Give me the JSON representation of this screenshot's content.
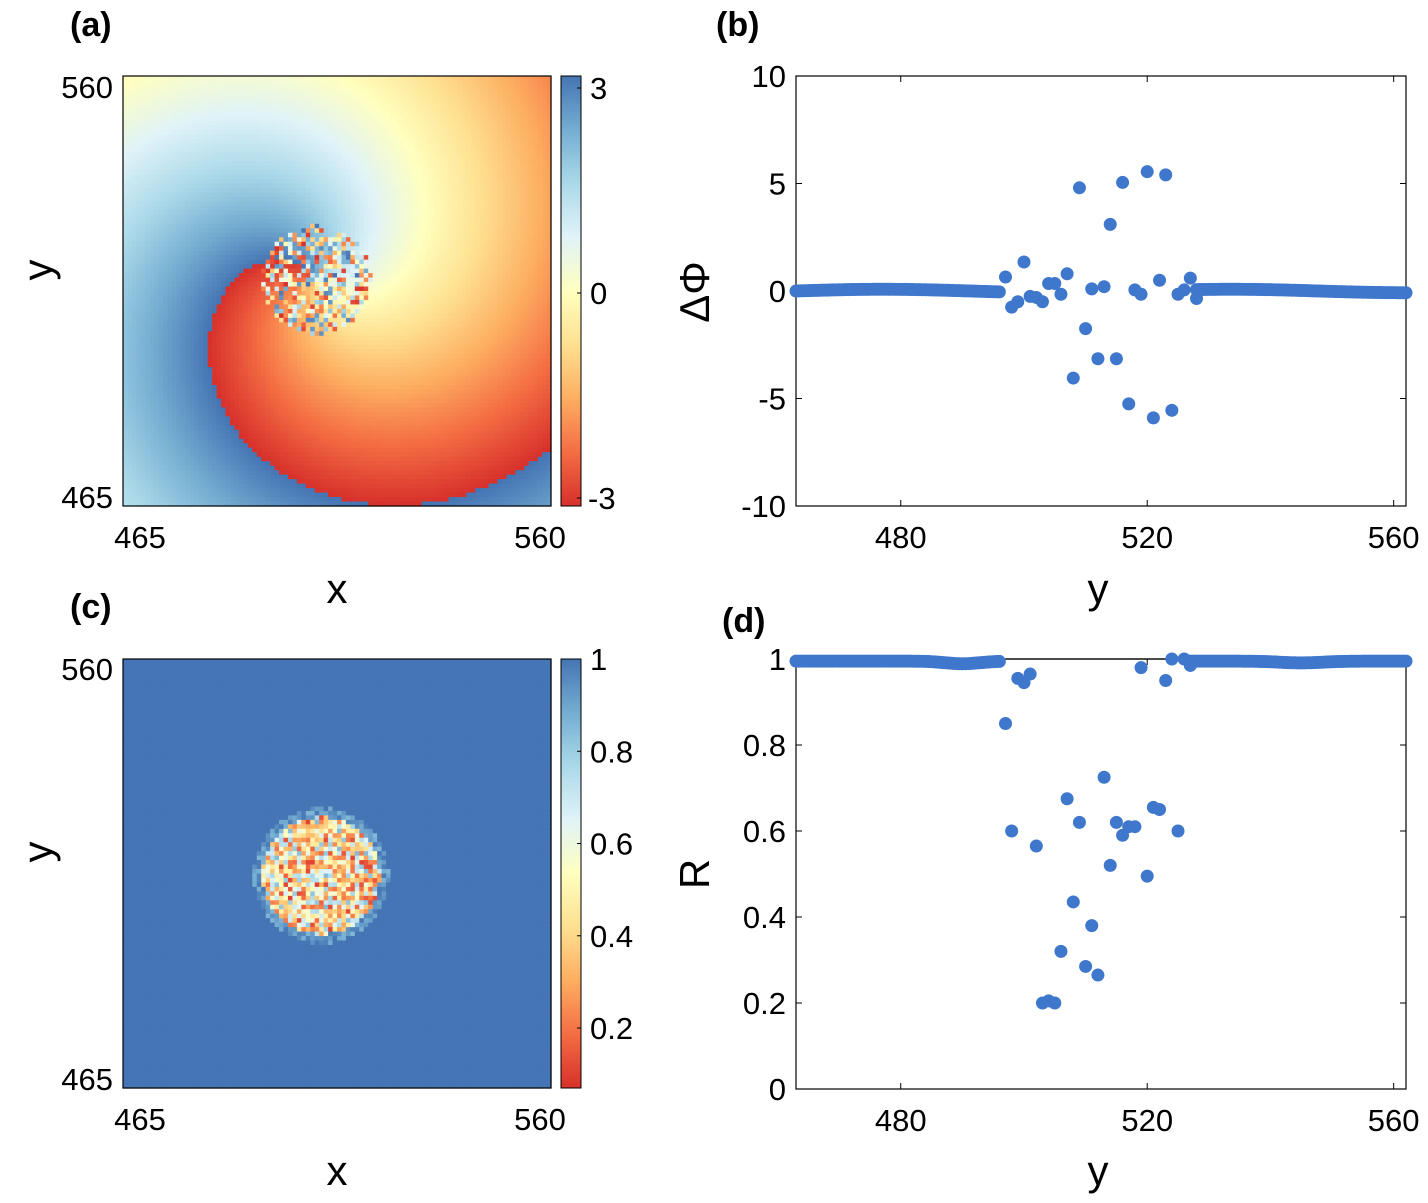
{
  "figure": {
    "colors": {
      "point": "#3f77cc",
      "frame": "#000000",
      "ref_line": "#000000"
    }
  },
  "chart_data": [
    {
      "id": "a",
      "panel_label": "(a)",
      "type": "heatmap",
      "description_free": true,
      "xlabel": "x",
      "ylabel": "y",
      "x_ticks": [
        "465",
        "560"
      ],
      "y_ticks": [
        "560",
        "465"
      ],
      "xlim": [
        465,
        560
      ],
      "ylim": [
        465,
        560
      ],
      "colorbar": {
        "ticks": [
          "3",
          "0",
          "-3"
        ],
        "range": [
          -3.1416,
          3.1416
        ],
        "colormap": [
          "#d7302b",
          "#f46d43",
          "#fdae61",
          "#fee090",
          "#ffffbf",
          "#e0f3f8",
          "#abd9e9",
          "#74add1",
          "#4575b4"
        ]
      },
      "core": {
        "center": [
          508,
          515
        ],
        "radius": 12
      }
    },
    {
      "id": "b",
      "panel_label": "(b)",
      "type": "scatter",
      "xlabel": "y",
      "ylabel": "ΔΦ",
      "xlim": [
        463,
        562
      ],
      "ylim": [
        -10,
        10
      ],
      "x_ticks": [
        "480",
        "520",
        "560"
      ],
      "y_ticks": [
        "10",
        "5",
        "0",
        "-5",
        "-10"
      ],
      "x_tick_values": [
        480,
        520,
        560
      ],
      "y_tick_values": [
        10,
        5,
        0,
        -5,
        -10
      ],
      "baseline": {
        "y": 0.0,
        "x_ranges": [
          [
            463,
            496
          ],
          [
            528,
            562
          ]
        ],
        "step": 0.5
      },
      "points": [
        [
          497,
          0.65
        ],
        [
          498,
          -0.75
        ],
        [
          499,
          -0.5
        ],
        [
          500,
          1.35
        ],
        [
          501,
          -0.25
        ],
        [
          502,
          -0.3
        ],
        [
          503,
          -0.5
        ],
        [
          504,
          0.35
        ],
        [
          505,
          0.35
        ],
        [
          506,
          -0.15
        ],
        [
          507,
          0.8
        ],
        [
          508,
          -4.05
        ],
        [
          509,
          4.8
        ],
        [
          510,
          -1.75
        ],
        [
          511,
          0.1
        ],
        [
          512,
          -3.15
        ],
        [
          513,
          0.2
        ],
        [
          514,
          3.1
        ],
        [
          515,
          -3.15
        ],
        [
          516,
          5.05
        ],
        [
          517,
          -5.25
        ],
        [
          518,
          0.05
        ],
        [
          519,
          -0.15
        ],
        [
          520,
          5.55
        ],
        [
          521,
          -5.9
        ],
        [
          522,
          0.5
        ],
        [
          523,
          5.4
        ],
        [
          524,
          -5.55
        ],
        [
          525,
          -0.15
        ],
        [
          526,
          0.05
        ],
        [
          527,
          0.6
        ],
        [
          528,
          -0.35
        ]
      ]
    },
    {
      "id": "c",
      "panel_label": "(c)",
      "type": "heatmap",
      "xlabel": "x",
      "ylabel": "y",
      "x_ticks": [
        "465",
        "560"
      ],
      "y_ticks": [
        "560",
        "465"
      ],
      "xlim": [
        465,
        560
      ],
      "ylim": [
        465,
        560
      ],
      "colorbar": {
        "ticks": [
          "1",
          "0.8",
          "0.6",
          "0.4",
          "0.2"
        ],
        "tick_values": [
          1,
          0.8,
          0.6,
          0.4,
          0.2
        ],
        "range": [
          0.07,
          1.0
        ],
        "colormap": [
          "#d7302b",
          "#f46d43",
          "#fdae61",
          "#fee090",
          "#ffffbf",
          "#e0f3f8",
          "#abd9e9",
          "#74add1",
          "#4575b4"
        ]
      },
      "core": {
        "center": [
          509,
          512
        ],
        "radius": 13
      }
    },
    {
      "id": "d",
      "panel_label": "(d)",
      "type": "scatter",
      "xlabel": "y",
      "ylabel": "R",
      "xlim": [
        463,
        562
      ],
      "ylim": [
        0,
        1
      ],
      "x_ticks": [
        "480",
        "520",
        "560"
      ],
      "y_ticks": [
        "1",
        "0.8",
        "0.6",
        "0.4",
        "0.2",
        "0"
      ],
      "x_tick_values": [
        480,
        520,
        560
      ],
      "y_tick_values": [
        1,
        0.8,
        0.6,
        0.4,
        0.2,
        0
      ],
      "reference_line": 1.0,
      "baseline": {
        "y": 0.995,
        "x_ranges": [
          [
            463,
            496
          ],
          [
            527,
            562
          ]
        ],
        "step": 0.5
      },
      "points": [
        [
          497,
          0.85
        ],
        [
          498,
          0.6
        ],
        [
          499,
          0.955
        ],
        [
          500,
          0.945
        ],
        [
          501,
          0.965
        ],
        [
          502,
          0.565
        ],
        [
          503,
          0.2
        ],
        [
          504,
          0.205
        ],
        [
          505,
          0.2
        ],
        [
          506,
          0.32
        ],
        [
          507,
          0.675
        ],
        [
          508,
          0.435
        ],
        [
          509,
          0.62
        ],
        [
          510,
          0.285
        ],
        [
          511,
          0.38
        ],
        [
          512,
          0.265
        ],
        [
          513,
          0.725
        ],
        [
          514,
          0.52
        ],
        [
          515,
          0.62
        ],
        [
          516,
          0.59
        ],
        [
          517,
          0.61
        ],
        [
          518,
          0.61
        ],
        [
          519,
          0.98
        ],
        [
          520,
          0.495
        ],
        [
          521,
          0.655
        ],
        [
          522,
          0.65
        ],
        [
          523,
          0.95
        ],
        [
          524,
          1.0
        ],
        [
          525,
          0.6
        ],
        [
          526,
          1.0
        ],
        [
          527,
          0.985
        ]
      ]
    }
  ]
}
